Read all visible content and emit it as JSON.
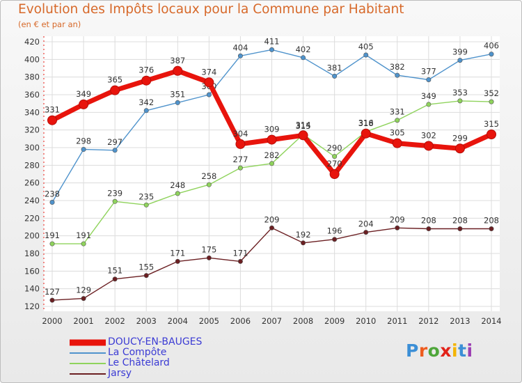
{
  "title": "Evolution des Impôts locaux pour la Commune par Habitant",
  "subtitle": "(en € et par an)",
  "logo": {
    "text": "Proxiti",
    "letter_colors": [
      "#3c8fd6",
      "#ee5c1f",
      "#4ea63a",
      "#e2231a",
      "#f4b400",
      "#3c8fd6",
      "#9c3fb3"
    ]
  },
  "chart_data": {
    "type": "line",
    "title": "Evolution des Impôts locaux pour la Commune par Habitant",
    "subtitle": "(en € et par an)",
    "xlabel": "",
    "ylabel": "",
    "x": [
      2000,
      2001,
      2002,
      2003,
      2004,
      2005,
      2006,
      2007,
      2008,
      2009,
      2010,
      2011,
      2012,
      2013,
      2014
    ],
    "x_labels": [
      "2000",
      "2001",
      "2002",
      "2003",
      "2004",
      "2005",
      "2006",
      "2007",
      "2008",
      "2009",
      "2010",
      "2011",
      "2012",
      "2013",
      "2014"
    ],
    "ylim": [
      120,
      420
    ],
    "yticks": [
      120,
      140,
      160,
      180,
      200,
      220,
      240,
      260,
      280,
      300,
      320,
      340,
      360,
      380,
      400,
      420
    ],
    "ytick_labels": [
      "120",
      "140",
      "160",
      "180",
      "200",
      "220",
      "240",
      "260",
      "280",
      "300",
      "320",
      "340",
      "360",
      "380",
      "400",
      "420"
    ],
    "grid": true,
    "legend_position": "bottom-left",
    "series": [
      {
        "name": "DOUCY-EN-BAUGES",
        "color": "#e8140c",
        "emphasis": true,
        "values": [
          331,
          349,
          365,
          376,
          387,
          374,
          304,
          309,
          314,
          270,
          316,
          305,
          302,
          299,
          315
        ],
        "labels": [
          "331",
          "349",
          "365",
          "376",
          "387",
          "374",
          "304",
          "309",
          "314",
          "270",
          "316",
          "305",
          "302",
          "299",
          "315"
        ]
      },
      {
        "name": "La Compôte",
        "color": "#4f93cc",
        "values": [
          238,
          298,
          297,
          342,
          351,
          360,
          404,
          411,
          402,
          381,
          405,
          382,
          377,
          399,
          406
        ],
        "labels": [
          "238",
          "298",
          "297",
          "342",
          "351",
          "360",
          "404",
          "411",
          "402",
          "381",
          "405",
          "382",
          "377",
          "399",
          "406"
        ]
      },
      {
        "name": "Le Châtelard",
        "color": "#8fd35c",
        "values": [
          191,
          191,
          239,
          235,
          248,
          258,
          277,
          282,
          315,
          290,
          318,
          331,
          349,
          353,
          352
        ],
        "labels": [
          "191",
          "191",
          "239",
          "235",
          "248",
          "258",
          "277",
          "282",
          "315",
          "290",
          "318",
          "331",
          "349",
          "353",
          "352"
        ]
      },
      {
        "name": "Jarsy",
        "color": "#6b1f22",
        "values": [
          127,
          129,
          151,
          155,
          171,
          175,
          171,
          209,
          192,
          196,
          204,
          209,
          208,
          208,
          208
        ],
        "labels": [
          "127",
          "129",
          "151",
          "155",
          "171",
          "175",
          "171",
          "209",
          "192",
          "196",
          "204",
          "209",
          "208",
          "208",
          "208"
        ]
      }
    ]
  }
}
